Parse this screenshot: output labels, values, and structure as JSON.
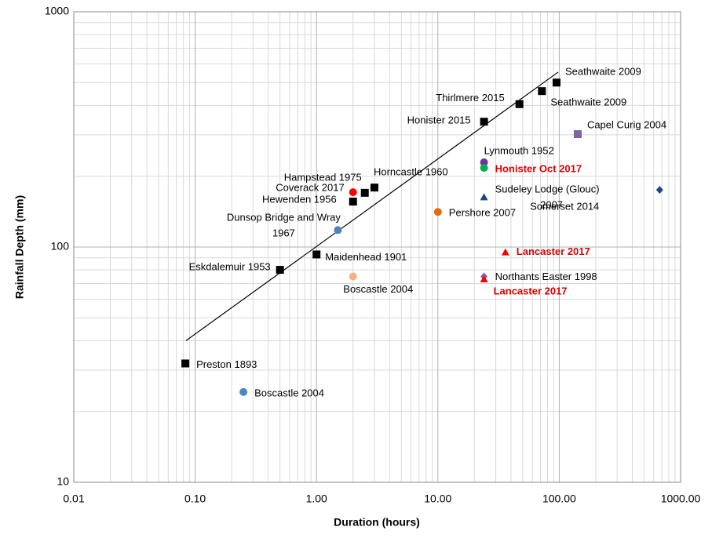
{
  "chart_data": {
    "type": "scatter",
    "x_label": "Duration (hours)",
    "y_label": "Rainfall Depth (mm)",
    "xscale": "log",
    "yscale": "log",
    "grid": true,
    "xlim": [
      0.01,
      1000
    ],
    "ylim": [
      10,
      1000
    ],
    "xticks": [
      {
        "value": 0.01,
        "label": "0.01"
      },
      {
        "value": 0.1,
        "label": "0.10"
      },
      {
        "value": 1,
        "label": "1.00"
      },
      {
        "value": 10,
        "label": "10.00"
      },
      {
        "value": 100,
        "label": "100.00"
      },
      {
        "value": 1000,
        "label": "1000.00"
      }
    ],
    "yticks": [
      10,
      100,
      1000
    ],
    "trendline": {
      "color": "#000000",
      "x": [
        0.084,
        98
      ],
      "values": [
        40,
        554
      ]
    },
    "series": [
      {
        "name": "Seathwaite 2009",
        "color": "#000000",
        "marker": "square",
        "x": [
          95
        ],
        "values": [
          500
        ]
      },
      {
        "name": "Seathwaite 2009",
        "color": "#000000",
        "marker": "square",
        "x": [
          72
        ],
        "values": [
          460
        ]
      },
      {
        "name": "Thirlmere 2015",
        "color": "#000000",
        "marker": "square",
        "x": [
          47
        ],
        "values": [
          405
        ]
      },
      {
        "name": "Honister 2015",
        "color": "#000000",
        "marker": "square",
        "x": [
          24
        ],
        "values": [
          341
        ]
      },
      {
        "name": "Capel Curig 2004",
        "color": "#8064a2",
        "marker": "square",
        "x": [
          142
        ],
        "values": [
          302
        ]
      },
      {
        "name": "Lynmouth 1952",
        "color": "#7030a0",
        "marker": "circle",
        "x": [
          24
        ],
        "values": [
          229
        ]
      },
      {
        "name": "Honister Oct 2017",
        "color": "#00b050",
        "marker": "circle",
        "x": [
          24
        ],
        "values": [
          217
        ],
        "label_color": "#e00000",
        "label_bold": true
      },
      {
        "name": "Sudeley Lodge (Glouc) 2007",
        "color": "#1f497d",
        "marker": "triangle",
        "x": [
          24
        ],
        "values": [
          163
        ]
      },
      {
        "name": "Somerset 2014",
        "color": "#1f497d",
        "marker": "diamond",
        "x": [
          672
        ],
        "values": [
          175
        ]
      },
      {
        "name": "Pershore 2007",
        "color": "#e36c0a",
        "marker": "circle",
        "x": [
          10
        ],
        "values": [
          141
        ]
      },
      {
        "name": "Lancaster 2017",
        "color": "#ff0000",
        "marker": "triangle",
        "x": [
          36
        ],
        "values": [
          95
        ],
        "label_color": "#e00000",
        "label_bold": true
      },
      {
        "name": "Northants Easter 1998",
        "color": "#8064a2",
        "marker": "diamond",
        "x": [
          24
        ],
        "values": [
          75
        ]
      },
      {
        "name": "Lancaster 2017",
        "color": "#ff0000",
        "marker": "triangle",
        "x": [
          24
        ],
        "values": [
          73
        ],
        "label_color": "#e00000",
        "label_bold": true
      },
      {
        "name": "Hampstead 1975",
        "color": "#000000",
        "marker": "square",
        "x": [
          2.5
        ],
        "values": [
          170
        ]
      },
      {
        "name": "Coverack 2017",
        "color": "#ff0000",
        "marker": "circle",
        "x": [
          2
        ],
        "values": [
          171
        ]
      },
      {
        "name": "Hewenden 1956",
        "color": "#000000",
        "marker": "square",
        "x": [
          2
        ],
        "values": [
          156
        ]
      },
      {
        "name": "Horncastle 1960",
        "color": "#000000",
        "marker": "square",
        "x": [
          3
        ],
        "values": [
          179
        ]
      },
      {
        "name": "Dunsop Bridge and Wray 1967",
        "color": "#4f81bd",
        "marker": "circle",
        "x": [
          1.5
        ],
        "values": [
          118
        ]
      },
      {
        "name": "Maidenhead 1901",
        "color": "#000000",
        "marker": "square",
        "x": [
          1
        ],
        "values": [
          93
        ]
      },
      {
        "name": "Eskdalemuir 1953",
        "color": "#000000",
        "marker": "square",
        "x": [
          0.5
        ],
        "values": [
          80
        ]
      },
      {
        "name": "Boscastle 2004",
        "color": "#f4b183",
        "marker": "circle",
        "x": [
          2
        ],
        "values": [
          75
        ]
      },
      {
        "name": "Preston 1893",
        "color": "#000000",
        "marker": "square",
        "x": [
          0.083
        ],
        "values": [
          32
        ]
      },
      {
        "name": "Boscastle 2004",
        "color": "#4a86c8",
        "marker": "circle",
        "x": [
          0.25
        ],
        "values": [
          24.2
        ]
      }
    ]
  }
}
